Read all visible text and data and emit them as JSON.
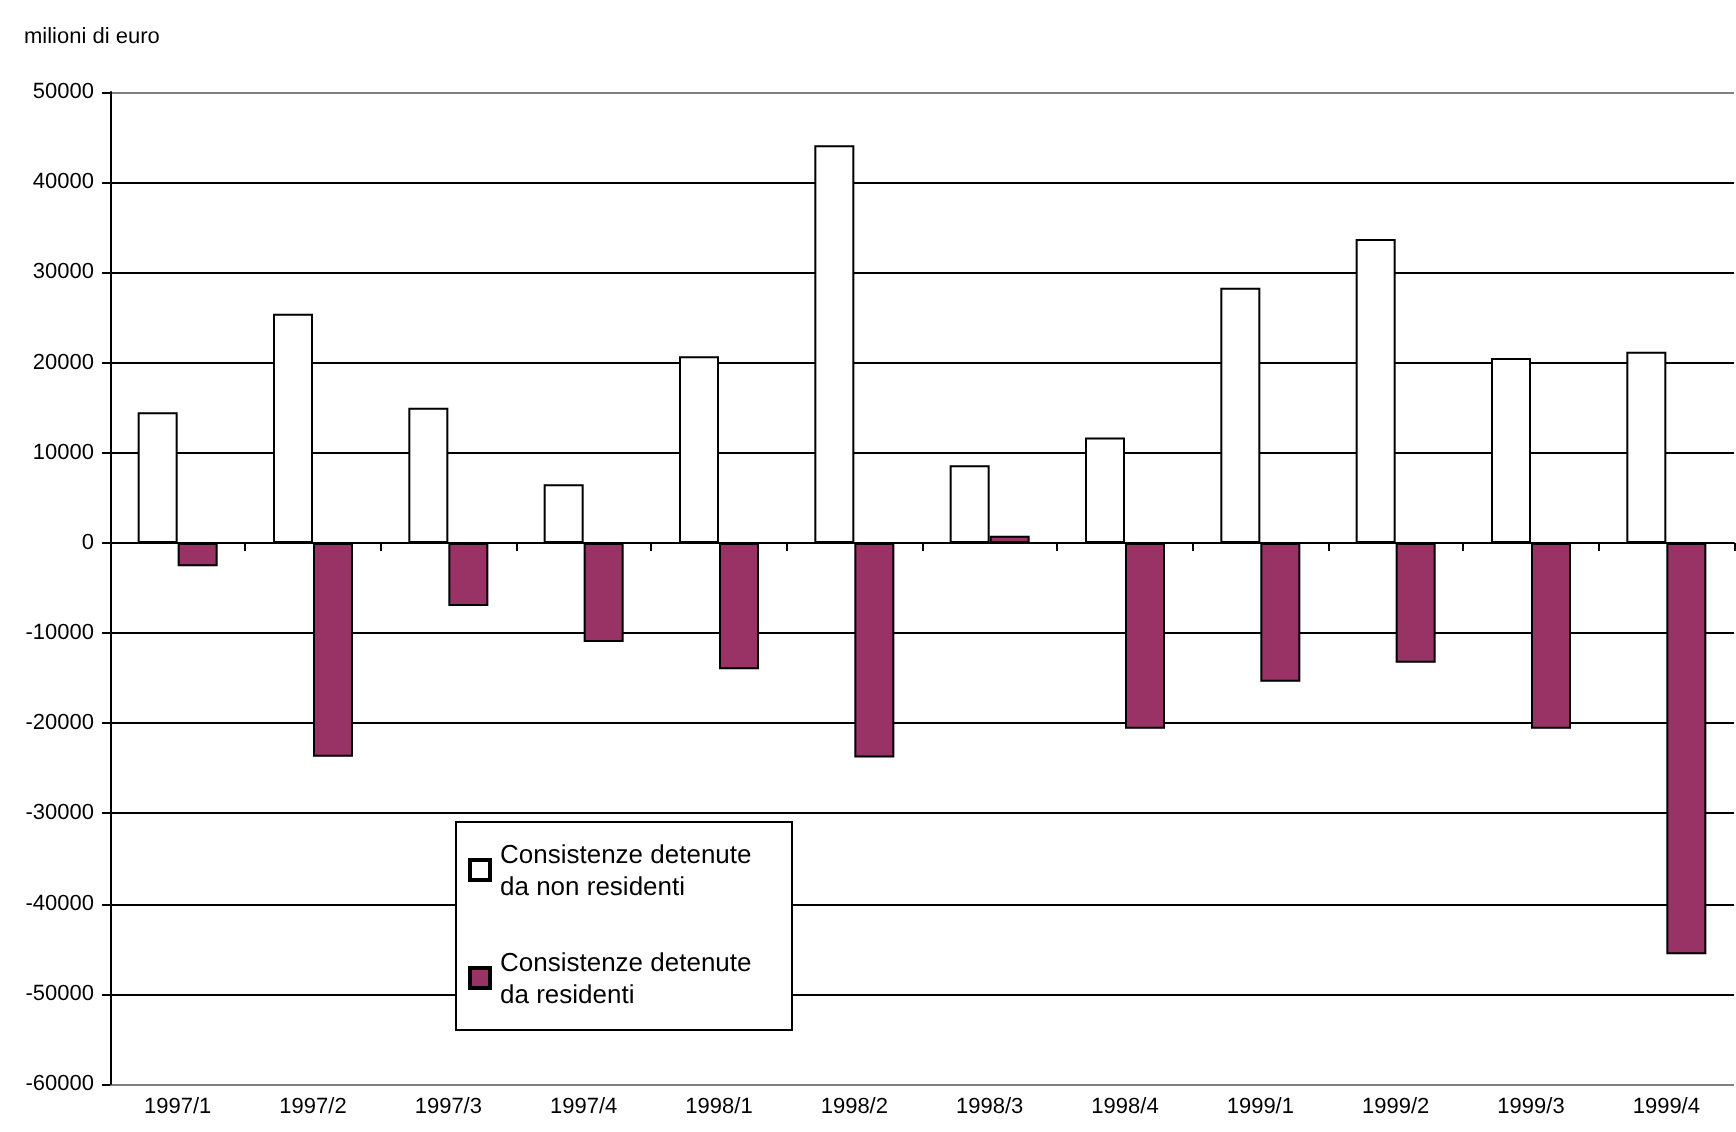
{
  "chart_data": {
    "type": "bar",
    "ylabel": "milioni di euro",
    "categories": [
      "1997/1",
      "1997/2",
      "1997/3",
      "1997/4",
      "1998/1",
      "1998/2",
      "1998/3",
      "1998/4",
      "1999/1",
      "1999/2",
      "1999/3",
      "1999/4"
    ],
    "series": [
      {
        "name": "Consistenze detenute da non residenti",
        "color": "#ffffff",
        "values": [
          14500,
          25400,
          15000,
          6500,
          20700,
          44100,
          8600,
          11700,
          28300,
          33700,
          20500,
          21200
        ]
      },
      {
        "name": "Consistenze detenute da residenti",
        "color": "#993366",
        "values": [
          -2600,
          -23700,
          -7000,
          -11000,
          -14000,
          -23800,
          800,
          -20600,
          -15400,
          -13300,
          -20600,
          -45600
        ]
      }
    ],
    "ylim": [
      -60000,
      50000
    ],
    "yticks": [
      -60000,
      -50000,
      -40000,
      -30000,
      -20000,
      -10000,
      0,
      10000,
      20000,
      30000,
      40000,
      50000
    ],
    "grid": "y",
    "legend": "bottom left"
  }
}
